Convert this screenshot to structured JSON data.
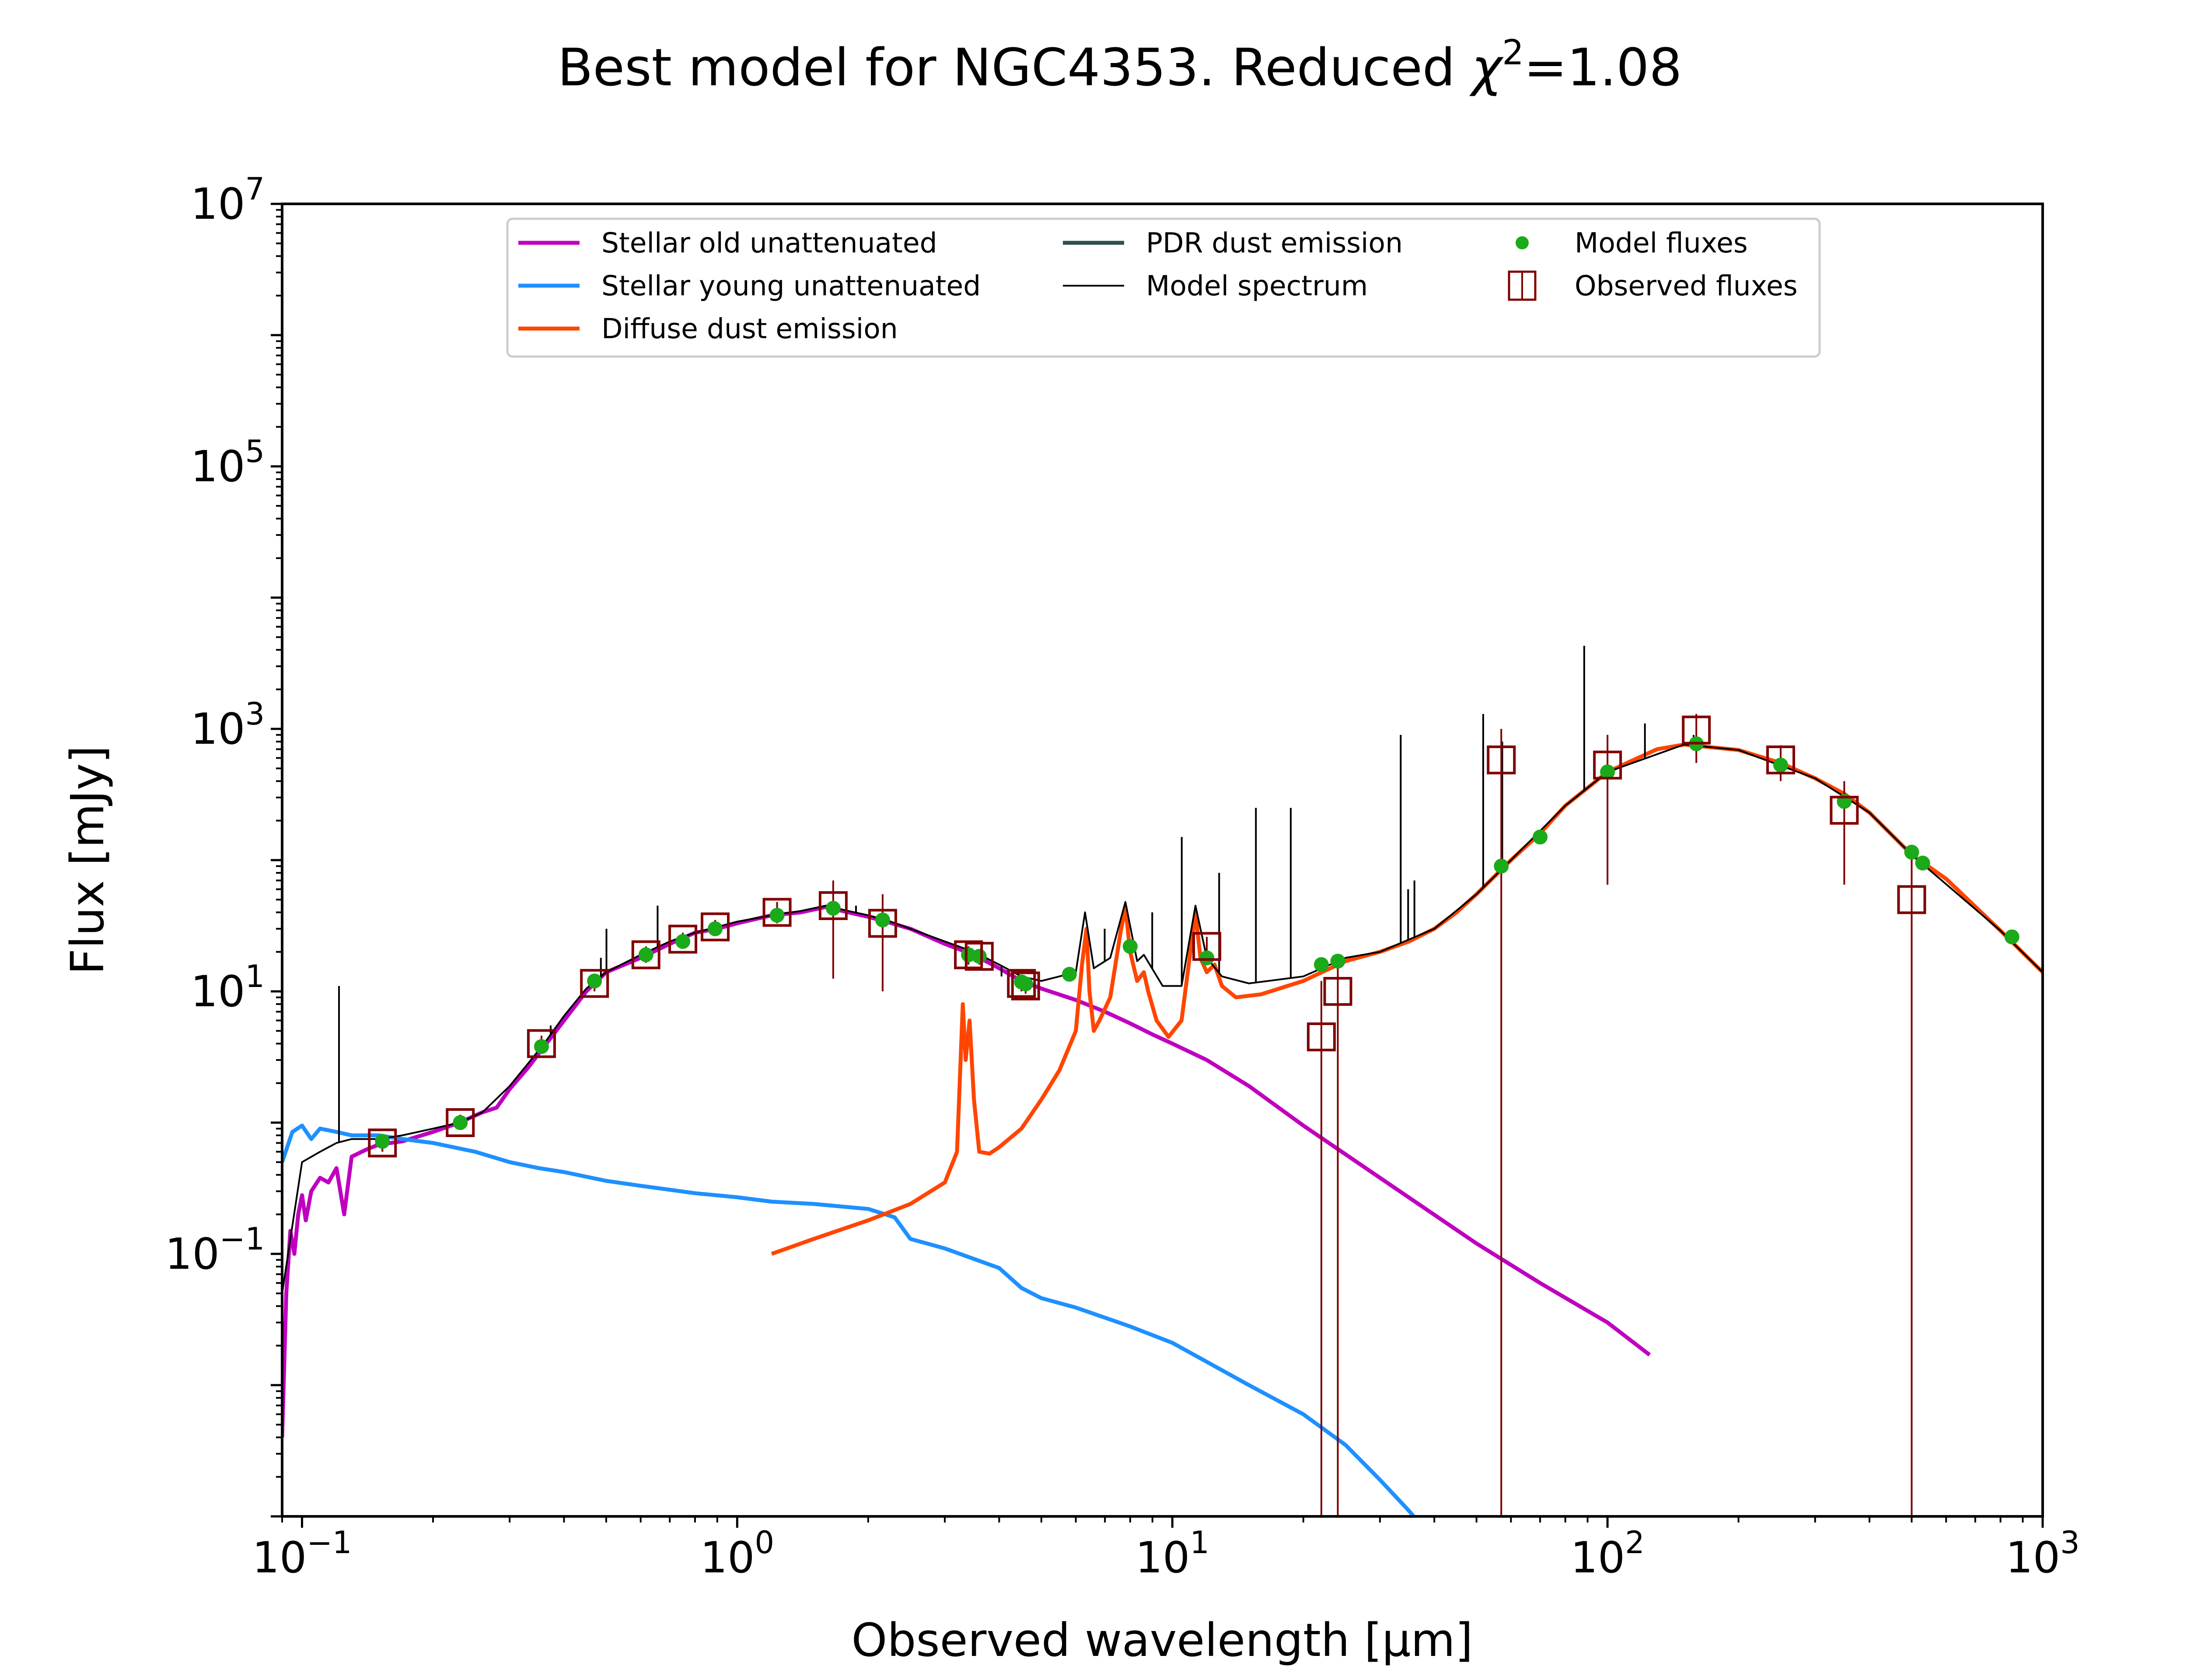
{
  "chart_data": {
    "type": "line",
    "title": "Best model for NGC4353. Reduced χ²=1.08",
    "title_parts": {
      "prefix": "Best model for NGC4353. Reduced ",
      "chi": "χ",
      "sup": "2",
      "suffix": "=1.08"
    },
    "xlabel": "Observed wavelength [μm]",
    "ylabel": "Flux [mJy]",
    "xscale": "log",
    "yscale": "log",
    "xlim": [
      0.09,
      1000
    ],
    "ylim": [
      0.001,
      10000000
    ],
    "grid": false,
    "legend_position": "top-center",
    "x_ticks": [
      {
        "value": 0.1,
        "base": "10",
        "exp": "−1"
      },
      {
        "value": 1,
        "base": "10",
        "exp": "0"
      },
      {
        "value": 10,
        "base": "10",
        "exp": "1"
      },
      {
        "value": 100,
        "base": "10",
        "exp": "2"
      },
      {
        "value": 1000,
        "base": "10",
        "exp": "3"
      }
    ],
    "y_ticks": [
      {
        "value": 0.1,
        "base": "10",
        "exp": "−1"
      },
      {
        "value": 10,
        "base": "10",
        "exp": "1"
      },
      {
        "value": 1000,
        "base": "10",
        "exp": "3"
      },
      {
        "value": 100000,
        "base": "10",
        "exp": "5"
      },
      {
        "value": 10000000,
        "base": "10",
        "exp": "7"
      }
    ],
    "legend": [
      {
        "label": "Stellar old unattenuated",
        "color": "#bf00bf",
        "marker": "line"
      },
      {
        "label": "Stellar young unattenuated",
        "color": "#1e90ff",
        "marker": "line"
      },
      {
        "label": "Diffuse dust emission",
        "color": "#ff4500",
        "marker": "line"
      },
      {
        "label": "PDR dust emission",
        "color": "#2f4f4f",
        "marker": "line"
      },
      {
        "label": "Model spectrum",
        "color": "#000000",
        "marker": "thin-line"
      },
      {
        "label": "Model fluxes",
        "color": "#1aaa1a",
        "marker": "dot"
      },
      {
        "label": "Observed fluxes",
        "color": "#800000",
        "marker": "open-square"
      }
    ],
    "series": [
      {
        "name": "Stellar old unattenuated",
        "color": "#bf00bf",
        "points": [
          [
            0.09,
            0.004
          ],
          [
            0.092,
            0.05
          ],
          [
            0.094,
            0.15
          ],
          [
            0.096,
            0.1
          ],
          [
            0.098,
            0.2
          ],
          [
            0.1,
            0.28
          ],
          [
            0.102,
            0.18
          ],
          [
            0.105,
            0.3
          ],
          [
            0.11,
            0.38
          ],
          [
            0.115,
            0.35
          ],
          [
            0.12,
            0.45
          ],
          [
            0.125,
            0.2
          ],
          [
            0.13,
            0.55
          ],
          [
            0.14,
            0.62
          ],
          [
            0.15,
            0.68
          ],
          [
            0.17,
            0.72
          ],
          [
            0.2,
            0.85
          ],
          [
            0.23,
            1.0
          ],
          [
            0.26,
            1.2
          ],
          [
            0.28,
            1.3
          ],
          [
            0.3,
            1.8
          ],
          [
            0.33,
            2.6
          ],
          [
            0.36,
            3.8
          ],
          [
            0.4,
            6
          ],
          [
            0.45,
            10
          ],
          [
            0.5,
            14
          ],
          [
            0.6,
            18
          ],
          [
            0.7,
            23
          ],
          [
            0.8,
            28
          ],
          [
            0.9,
            30
          ],
          [
            1.0,
            33
          ],
          [
            1.2,
            38
          ],
          [
            1.4,
            40
          ],
          [
            1.6,
            44
          ],
          [
            1.8,
            40
          ],
          [
            2.0,
            37
          ],
          [
            2.2,
            34
          ],
          [
            2.5,
            30
          ],
          [
            3.0,
            23
          ],
          [
            3.5,
            19
          ],
          [
            4.0,
            15
          ],
          [
            4.5,
            12
          ],
          [
            5,
            10.5
          ],
          [
            6,
            8.6
          ],
          [
            7,
            7
          ],
          [
            8,
            5.7
          ],
          [
            9,
            4.7
          ],
          [
            10,
            4.0
          ],
          [
            12,
            3.0
          ],
          [
            15,
            1.9
          ],
          [
            20,
            0.95
          ],
          [
            30,
            0.38
          ],
          [
            50,
            0.12
          ],
          [
            70,
            0.06
          ],
          [
            100,
            0.03
          ],
          [
            125,
            0.017
          ]
        ]
      },
      {
        "name": "Stellar young unattenuated",
        "color": "#1e90ff",
        "points": [
          [
            0.09,
            0.5
          ],
          [
            0.095,
            0.85
          ],
          [
            0.1,
            0.95
          ],
          [
            0.105,
            0.75
          ],
          [
            0.11,
            0.9
          ],
          [
            0.12,
            0.85
          ],
          [
            0.13,
            0.8
          ],
          [
            0.15,
            0.8
          ],
          [
            0.17,
            0.75
          ],
          [
            0.2,
            0.7
          ],
          [
            0.25,
            0.6
          ],
          [
            0.3,
            0.5
          ],
          [
            0.35,
            0.45
          ],
          [
            0.4,
            0.42
          ],
          [
            0.5,
            0.36
          ],
          [
            0.6,
            0.33
          ],
          [
            0.8,
            0.29
          ],
          [
            1.0,
            0.27
          ],
          [
            1.2,
            0.25
          ],
          [
            1.5,
            0.24
          ],
          [
            2.0,
            0.22
          ],
          [
            2.3,
            0.19
          ],
          [
            2.5,
            0.13
          ],
          [
            3.0,
            0.11
          ],
          [
            4.0,
            0.078
          ],
          [
            4.5,
            0.055
          ],
          [
            5,
            0.046
          ],
          [
            6,
            0.039
          ],
          [
            8,
            0.028
          ],
          [
            10,
            0.021
          ],
          [
            15,
            0.01
          ],
          [
            20,
            0.006
          ],
          [
            25,
            0.0035
          ],
          [
            30,
            0.0019
          ],
          [
            35,
            0.0011
          ],
          [
            40,
            0.00065
          ]
        ]
      },
      {
        "name": "Diffuse dust emission",
        "color": "#ff4500",
        "points": [
          [
            1.2,
            0.1
          ],
          [
            1.5,
            0.13
          ],
          [
            2.0,
            0.18
          ],
          [
            2.5,
            0.24
          ],
          [
            3.0,
            0.35
          ],
          [
            3.2,
            0.6
          ],
          [
            3.3,
            8
          ],
          [
            3.35,
            3
          ],
          [
            3.42,
            6
          ],
          [
            3.5,
            1.5
          ],
          [
            3.6,
            0.6
          ],
          [
            3.8,
            0.58
          ],
          [
            4.0,
            0.65
          ],
          [
            4.5,
            0.9
          ],
          [
            5.0,
            1.5
          ],
          [
            5.5,
            2.5
          ],
          [
            6.0,
            5
          ],
          [
            6.2,
            16
          ],
          [
            6.35,
            30
          ],
          [
            6.45,
            10
          ],
          [
            6.6,
            5
          ],
          [
            6.8,
            6
          ],
          [
            7.2,
            9
          ],
          [
            7.6,
            28
          ],
          [
            7.8,
            44
          ],
          [
            8.0,
            20
          ],
          [
            8.3,
            12
          ],
          [
            8.6,
            14
          ],
          [
            8.8,
            10
          ],
          [
            9.2,
            6
          ],
          [
            9.8,
            4.5
          ],
          [
            10.5,
            6
          ],
          [
            11.0,
            20
          ],
          [
            11.3,
            40
          ],
          [
            11.6,
            18
          ],
          [
            12.0,
            14
          ],
          [
            12.5,
            16
          ],
          [
            13.0,
            11
          ],
          [
            14,
            9
          ],
          [
            16,
            9.5
          ],
          [
            20,
            12
          ],
          [
            25,
            17
          ],
          [
            30,
            20
          ],
          [
            35,
            24
          ],
          [
            40,
            30
          ],
          [
            45,
            40
          ],
          [
            50,
            55
          ],
          [
            60,
            100
          ],
          [
            70,
            160
          ],
          [
            80,
            260
          ],
          [
            100,
            470
          ],
          [
            130,
            700
          ],
          [
            150,
            760
          ],
          [
            200,
            690
          ],
          [
            250,
            550
          ],
          [
            300,
            420
          ],
          [
            350,
            320
          ],
          [
            400,
            230
          ],
          [
            500,
            110
          ],
          [
            600,
            72
          ],
          [
            800,
            29
          ],
          [
            1000,
            14
          ]
        ]
      },
      {
        "name": "PDR dust emission",
        "color": "#2f4f4f",
        "points": []
      },
      {
        "name": "Model spectrum",
        "color": "#000000",
        "points": [
          [
            0.09,
            0.05
          ],
          [
            0.1,
            0.5
          ],
          [
            0.11,
            0.6
          ],
          [
            0.12,
            0.7
          ],
          [
            0.13,
            0.75
          ],
          [
            0.15,
            0.75
          ],
          [
            0.17,
            0.8
          ],
          [
            0.2,
            0.9
          ],
          [
            0.23,
            1.0
          ],
          [
            0.26,
            1.2
          ],
          [
            0.3,
            1.9
          ],
          [
            0.33,
            2.8
          ],
          [
            0.36,
            4
          ],
          [
            0.4,
            6.5
          ],
          [
            0.45,
            10.5
          ],
          [
            0.5,
            14
          ],
          [
            0.6,
            19
          ],
          [
            0.7,
            24
          ],
          [
            0.8,
            28
          ],
          [
            0.9,
            31
          ],
          [
            1.0,
            34
          ],
          [
            1.2,
            38
          ],
          [
            1.4,
            41
          ],
          [
            1.6,
            45
          ],
          [
            1.8,
            41
          ],
          [
            2.0,
            38
          ],
          [
            2.2,
            35
          ],
          [
            2.5,
            30
          ],
          [
            3.0,
            24
          ],
          [
            3.5,
            20
          ],
          [
            4.0,
            16
          ],
          [
            4.5,
            13
          ],
          [
            5,
            12
          ],
          [
            6,
            14
          ],
          [
            6.3,
            40
          ],
          [
            6.6,
            15
          ],
          [
            7.2,
            18
          ],
          [
            7.8,
            48
          ],
          [
            8.3,
            17
          ],
          [
            8.6,
            19
          ],
          [
            9.5,
            11
          ],
          [
            10.5,
            11
          ],
          [
            11.3,
            45
          ],
          [
            12,
            18
          ],
          [
            13,
            13
          ],
          [
            15,
            11.5
          ],
          [
            20,
            13
          ],
          [
            25,
            18
          ],
          [
            30,
            20
          ],
          [
            40,
            30
          ],
          [
            50,
            55
          ],
          [
            60,
            100
          ],
          [
            80,
            260
          ],
          [
            100,
            470
          ],
          [
            150,
            760
          ],
          [
            200,
            690
          ],
          [
            300,
            420
          ],
          [
            400,
            230
          ],
          [
            500,
            110
          ],
          [
            800,
            29
          ],
          [
            1000,
            14
          ]
        ]
      }
    ],
    "emission_lines": [
      {
        "x": 0.1216,
        "top": 11
      },
      {
        "x": 0.3727,
        "top": 5.5
      },
      {
        "x": 0.4861,
        "top": 18
      },
      {
        "x": 0.5007,
        "top": 30
      },
      {
        "x": 0.6563,
        "top": 45
      },
      {
        "x": 1.875,
        "top": 45
      },
      {
        "x": 4.05,
        "top": 13
      },
      {
        "x": 6.99,
        "top": 30
      },
      {
        "x": 8.99,
        "top": 40
      },
      {
        "x": 10.51,
        "top": 150
      },
      {
        "x": 12.81,
        "top": 80
      },
      {
        "x": 15.56,
        "top": 250
      },
      {
        "x": 18.71,
        "top": 250
      },
      {
        "x": 33.48,
        "top": 900
      },
      {
        "x": 34.82,
        "top": 60
      },
      {
        "x": 36.0,
        "top": 70
      },
      {
        "x": 51.8,
        "top": 1300
      },
      {
        "x": 57.3,
        "top": 800
      },
      {
        "x": 88.4,
        "top": 4300
      },
      {
        "x": 121.9,
        "top": 1100
      },
      {
        "x": 157.7,
        "top": 900
      }
    ],
    "model_fluxes": [
      {
        "x": 0.153,
        "y": 0.72
      },
      {
        "x": 0.231,
        "y": 1.0
      },
      {
        "x": 0.355,
        "y": 3.8
      },
      {
        "x": 0.47,
        "y": 12
      },
      {
        "x": 0.617,
        "y": 19
      },
      {
        "x": 0.75,
        "y": 24
      },
      {
        "x": 0.89,
        "y": 30
      },
      {
        "x": 1.235,
        "y": 38
      },
      {
        "x": 1.662,
        "y": 43
      },
      {
        "x": 2.159,
        "y": 35
      },
      {
        "x": 3.4,
        "y": 19
      },
      {
        "x": 3.6,
        "y": 18.5
      },
      {
        "x": 4.5,
        "y": 11.8
      },
      {
        "x": 4.6,
        "y": 11.4
      },
      {
        "x": 5.8,
        "y": 13.5
      },
      {
        "x": 8.0,
        "y": 22
      },
      {
        "x": 12,
        "y": 18
      },
      {
        "x": 22,
        "y": 16
      },
      {
        "x": 24,
        "y": 17
      },
      {
        "x": 57,
        "y": 90
      },
      {
        "x": 70,
        "y": 150
      },
      {
        "x": 100,
        "y": 470
      },
      {
        "x": 160,
        "y": 770
      },
      {
        "x": 250,
        "y": 530
      },
      {
        "x": 350,
        "y": 280
      },
      {
        "x": 500,
        "y": 115
      },
      {
        "x": 530,
        "y": 95
      },
      {
        "x": 850,
        "y": 26
      }
    ],
    "observed_fluxes": [
      {
        "x": 0.153,
        "y": 0.7,
        "lo": 0.6,
        "hi": 0.82
      },
      {
        "x": 0.231,
        "y": 1.0,
        "lo": 0.88,
        "hi": 1.15
      },
      {
        "x": 0.355,
        "y": 4.0,
        "lo": 3.4,
        "hi": 4.6
      },
      {
        "x": 0.47,
        "y": 11.5,
        "lo": 10,
        "hi": 13
      },
      {
        "x": 0.617,
        "y": 19,
        "lo": 16.5,
        "hi": 22
      },
      {
        "x": 0.75,
        "y": 25,
        "lo": 22,
        "hi": 28
      },
      {
        "x": 0.89,
        "y": 31,
        "lo": 27,
        "hi": 35
      },
      {
        "x": 1.235,
        "y": 40,
        "lo": 33,
        "hi": 48
      },
      {
        "x": 1.662,
        "y": 45,
        "lo": 12.5,
        "hi": 70
      },
      {
        "x": 2.159,
        "y": 33,
        "lo": 10,
        "hi": 55
      },
      {
        "x": 3.4,
        "y": 19,
        "lo": 16,
        "hi": 22
      },
      {
        "x": 3.6,
        "y": 18.5,
        "lo": 16,
        "hi": 21
      },
      {
        "x": 4.5,
        "y": 11.5,
        "lo": 10,
        "hi": 13
      },
      {
        "x": 4.6,
        "y": 11,
        "lo": 9.6,
        "hi": 12.5
      },
      {
        "x": 12,
        "y": 22,
        "lo": 18,
        "hi": 26
      },
      {
        "x": 22,
        "y": 4.5,
        "lo": 0.001,
        "hi": 12
      },
      {
        "x": 24,
        "y": 10,
        "lo": 0.001,
        "hi": 17
      },
      {
        "x": 57,
        "y": 580,
        "lo": 0.001,
        "hi": 1000
      },
      {
        "x": 100,
        "y": 530,
        "lo": 65,
        "hi": 900
      },
      {
        "x": 160,
        "y": 980,
        "lo": 550,
        "hi": 1300
      },
      {
        "x": 250,
        "y": 580,
        "lo": 400,
        "hi": 750
      },
      {
        "x": 350,
        "y": 240,
        "lo": 65,
        "hi": 400
      },
      {
        "x": 500,
        "y": 50,
        "lo": 0.001,
        "hi": 130
      }
    ]
  }
}
